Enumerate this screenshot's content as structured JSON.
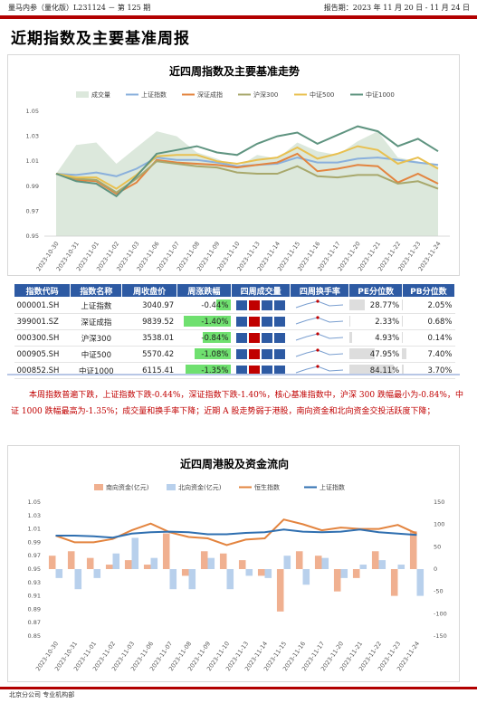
{
  "header": {
    "left": "量马内参（量化版）L231124 － 第 125 期",
    "right": "报告期：2023 年 11 月 20 日 - 11 月 24 日"
  },
  "page_title": "近期指数及主要基准周报",
  "index_chart": {
    "title": "近四周指数及主要基准走势",
    "legend": [
      "成交量",
      "上证指数",
      "深证成指",
      "沪深300",
      "中证500",
      "中证1000"
    ],
    "colors": {
      "成交量": "#dce8dc",
      "上证指数": "#8ab0dc",
      "深证成指": "#e3843f",
      "沪深300": "#a8a86c",
      "中证500": "#e8c050",
      "中证1000": "#5f9480"
    }
  },
  "table": {
    "headers": [
      "指数代码",
      "指数名称",
      "周收盘价",
      "周涨跌幅",
      "四周成交量",
      "四周换手率",
      "PE分位数",
      "PB分位数"
    ],
    "rows": [
      {
        "code": "000001.SH",
        "name": "上证指数",
        "close": "3040.97",
        "chg": "-0.44%",
        "chg_val": 0.44,
        "pe": "28.77%",
        "pe_val": 0.2877,
        "pb": "2.05%",
        "pb_val": 0.0205
      },
      {
        "code": "399001.SZ",
        "name": "深证成指",
        "close": "9839.52",
        "chg": "-1.40%",
        "chg_val": 1.4,
        "pe": "2.33%",
        "pe_val": 0.0233,
        "pb": "0.68%",
        "pb_val": 0.0068
      },
      {
        "code": "000300.SH",
        "name": "沪深300",
        "close": "3538.01",
        "chg": "-0.84%",
        "chg_val": 0.84,
        "pe": "4.93%",
        "pe_val": 0.0493,
        "pb": "0.14%",
        "pb_val": 0.0014
      },
      {
        "code": "000905.SH",
        "name": "中证500",
        "close": "5570.42",
        "chg": "-1.08%",
        "chg_val": 1.08,
        "pe": "47.95%",
        "pe_val": 0.4795,
        "pb": "7.40%",
        "pb_val": 0.074
      },
      {
        "code": "000852.SH",
        "name": "中证1000",
        "close": "6115.41",
        "chg": "-1.35%",
        "chg_val": 1.35,
        "pe": "84.11%",
        "pe_val": 0.8411,
        "pb": "3.70%",
        "pb_val": 0.037
      }
    ]
  },
  "summary": "本周指数普遍下跌，上证指数下跌-0.44%，深证指数下跌-1.40%，核心基准指数中，沪深 300 跌幅最小为-0.84%，中证 1000 跌幅最高为-1.35%；成交量和换手率下降；近期 A 股走势弱于港股，南向资金和北向资金交投活跃度下降；",
  "flow_chart": {
    "title": "近四周港股及资金流向",
    "legend": [
      "南向资金(亿元)",
      "北向资金(亿元)",
      "恒生指数",
      "上证指数"
    ],
    "colors": {
      "南向资金(亿元)": "#f0b090",
      "北向资金(亿元)": "#b8d0ec",
      "恒生指数": "#e3843f",
      "上证指数": "#2f6fb0"
    }
  },
  "footer": "北京分公司 专业机构部",
  "chart_data": [
    {
      "type": "line",
      "title": "近四周指数及主要基准走势",
      "x": [
        "2023-10-30",
        "2023-10-31",
        "2023-11-01",
        "2023-11-02",
        "2023-11-03",
        "2023-11-06",
        "2023-11-07",
        "2023-11-08",
        "2023-11-09",
        "2023-11-10",
        "2023-11-13",
        "2023-11-14",
        "2023-11-15",
        "2023-11-16",
        "2023-11-17",
        "2023-11-20",
        "2023-11-21",
        "2023-11-22",
        "2023-11-23",
        "2023-11-24"
      ],
      "ylim": [
        0.95,
        1.05
      ],
      "yticks": [
        "1.05",
        "1.03",
        "1.01",
        "0.99",
        "0.97",
        "0.95"
      ],
      "area": {
        "name": "成交量",
        "values": [
          1.0,
          1.023,
          1.025,
          1.008,
          1.021,
          1.034,
          1.03,
          1.017,
          1.012,
          1.005,
          1.015,
          1.012,
          1.025,
          1.018,
          1.015,
          1.026,
          1.034,
          1.013,
          1.01,
          1.006
        ]
      },
      "series": [
        {
          "name": "上证指数",
          "values": [
            1.0,
            0.999,
            1.001,
            0.998,
            1.004,
            1.013,
            1.011,
            1.011,
            1.009,
            1.006,
            1.007,
            1.008,
            1.013,
            1.009,
            1.009,
            1.012,
            1.013,
            1.011,
            1.009,
            1.007
          ]
        },
        {
          "name": "深证成指",
          "values": [
            1.0,
            0.995,
            0.994,
            0.984,
            0.993,
            1.011,
            1.009,
            1.008,
            1.007,
            1.005,
            1.007,
            1.009,
            1.016,
            1.002,
            1.004,
            1.007,
            1.006,
            0.993,
            1.0,
            0.992
          ]
        },
        {
          "name": "沪深300",
          "values": [
            1.0,
            0.996,
            0.995,
            0.985,
            0.996,
            1.01,
            1.008,
            1.006,
            1.005,
            1.001,
            1.0,
            1.0,
            1.006,
            0.998,
            0.997,
            0.999,
            0.999,
            0.992,
            0.994,
            0.988
          ]
        },
        {
          "name": "中证500",
          "values": [
            1.0,
            0.997,
            0.997,
            0.988,
            0.999,
            1.014,
            1.015,
            1.015,
            1.01,
            1.008,
            1.011,
            1.013,
            1.021,
            1.012,
            1.016,
            1.022,
            1.019,
            1.008,
            1.013,
            1.004
          ]
        },
        {
          "name": "中证1000",
          "values": [
            1.0,
            0.994,
            0.992,
            0.982,
            0.998,
            1.016,
            1.019,
            1.022,
            1.017,
            1.015,
            1.024,
            1.03,
            1.033,
            1.024,
            1.031,
            1.038,
            1.034,
            1.022,
            1.028,
            1.018
          ]
        }
      ]
    },
    {
      "type": "bar",
      "title": "近四周港股及资金流向",
      "x": [
        "2023-10-30",
        "2023-10-31",
        "2023-11-01",
        "2023-11-02",
        "2023-11-03",
        "2023-11-06",
        "2023-11-07",
        "2023-11-08",
        "2023-11-09",
        "2023-11-10",
        "2023-11-13",
        "2023-11-14",
        "2023-11-15",
        "2023-11-16",
        "2023-11-17",
        "2023-11-20",
        "2023-11-21",
        "2023-11-22",
        "2023-11-23",
        "2023-11-24"
      ],
      "ylim_left": [
        0.85,
        1.05
      ],
      "yticks_left": [
        "1.05",
        "1.03",
        "1.01",
        "0.99",
        "0.97",
        "0.95",
        "0.93",
        "0.91",
        "0.89",
        "0.87",
        "0.85"
      ],
      "ylim_right": [
        -150,
        150
      ],
      "yticks_right": [
        "150",
        "100",
        "50",
        "0",
        "-50",
        "-100",
        "-150"
      ],
      "series": [
        {
          "name": "南向资金(亿元)",
          "values": [
            30,
            40,
            25,
            10,
            20,
            10,
            80,
            -15,
            40,
            35,
            20,
            -15,
            -95,
            40,
            30,
            -50,
            -20,
            40,
            -60,
            85
          ]
        },
        {
          "name": "北向资金(亿元)",
          "values": [
            -20,
            -45,
            -20,
            35,
            70,
            25,
            -45,
            -45,
            25,
            -45,
            -15,
            -20,
            30,
            -35,
            25,
            -20,
            10,
            20,
            10,
            -60
          ]
        },
        {
          "name": "恒生指数",
          "values": [
            1.0,
            0.99,
            0.99,
            0.995,
            1.008,
            1.018,
            1.005,
            0.998,
            0.996,
            0.986,
            0.994,
            0.996,
            1.024,
            1.017,
            1.008,
            1.012,
            1.01,
            1.01,
            1.016,
            1.003
          ]
        },
        {
          "name": "上证指数",
          "values": [
            1.0,
            1.0,
            0.999,
            0.997,
            1.003,
            1.005,
            1.006,
            1.005,
            1.002,
            1.002,
            1.004,
            1.005,
            1.009,
            1.006,
            1.005,
            1.006,
            1.009,
            1.005,
            1.003,
            1.001
          ]
        }
      ]
    }
  ]
}
